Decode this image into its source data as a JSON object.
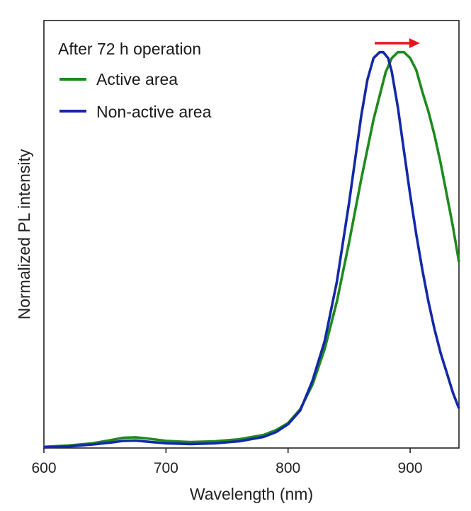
{
  "chart_data": {
    "type": "line",
    "xlabel": "Wavelength (nm)",
    "ylabel": "Normalized PL intensity",
    "xlim": [
      600,
      940
    ],
    "ylim": [
      0,
      1.08
    ],
    "xticks": [
      600,
      700,
      800,
      900
    ],
    "yticks_shown": false,
    "grid": false,
    "annotation": "After 72 h operation",
    "legend_placement": "top-left",
    "shift_arrow": {
      "from_x": 871,
      "to_x": 908,
      "color": "#e8141b"
    },
    "series": [
      {
        "name": "Active area",
        "color": "#1e8a1e",
        "x": [
          600,
          620,
          640,
          655,
          665,
          675,
          685,
          700,
          720,
          740,
          760,
          780,
          790,
          800,
          810,
          820,
          830,
          840,
          850,
          860,
          870,
          880,
          885,
          890,
          895,
          900,
          905,
          910,
          915,
          920,
          925,
          930,
          935,
          940
        ],
        "y": [
          0.003,
          0.006,
          0.012,
          0.02,
          0.026,
          0.027,
          0.024,
          0.018,
          0.015,
          0.017,
          0.022,
          0.033,
          0.045,
          0.063,
          0.098,
          0.16,
          0.25,
          0.37,
          0.52,
          0.68,
          0.83,
          0.95,
          0.985,
          1.0,
          1.0,
          0.985,
          0.955,
          0.9,
          0.85,
          0.79,
          0.72,
          0.64,
          0.56,
          0.47
        ]
      },
      {
        "name": "Non-active area",
        "color": "#1428a8",
        "x": [
          600,
          620,
          640,
          655,
          665,
          675,
          685,
          700,
          720,
          740,
          760,
          780,
          790,
          800,
          810,
          820,
          830,
          840,
          850,
          860,
          865,
          870,
          875,
          878,
          882,
          885,
          890,
          895,
          900,
          905,
          910,
          915,
          920,
          925,
          930,
          935,
          940
        ],
        "y": [
          0.002,
          0.004,
          0.009,
          0.014,
          0.018,
          0.019,
          0.016,
          0.012,
          0.01,
          0.012,
          0.017,
          0.028,
          0.04,
          0.06,
          0.095,
          0.17,
          0.27,
          0.42,
          0.62,
          0.84,
          0.93,
          0.985,
          1.0,
          1.0,
          0.985,
          0.95,
          0.86,
          0.75,
          0.64,
          0.54,
          0.45,
          0.37,
          0.3,
          0.24,
          0.19,
          0.14,
          0.1
        ]
      }
    ]
  }
}
